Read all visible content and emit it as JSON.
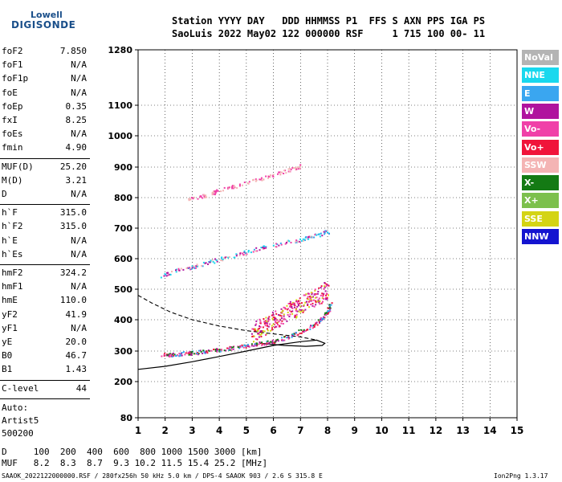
{
  "logo": {
    "line1": "Lowell",
    "line2": "DIGISONDE"
  },
  "header": {
    "row1": "Station YYYY DAY   DDD HHMMSS P1  FFS S AXN PPS IGA PS",
    "row2": "SaoLuis 2022 May02 122 000000 RSF     1 715 100 00- 11"
  },
  "params": {
    "group1": [
      {
        "k": "foF2",
        "v": "7.850"
      },
      {
        "k": "foF1",
        "v": "N/A"
      },
      {
        "k": "foF1p",
        "v": "N/A"
      },
      {
        "k": "foE",
        "v": "N/A"
      },
      {
        "k": "foEp",
        "v": "0.35"
      },
      {
        "k": "fxI",
        "v": "8.25"
      },
      {
        "k": "foEs",
        "v": "N/A"
      },
      {
        "k": "fmin",
        "v": "4.90"
      }
    ],
    "group2": [
      {
        "k": "MUF(D)",
        "v": "25.20"
      },
      {
        "k": "M(D)",
        "v": "3.21"
      },
      {
        "k": "D",
        "v": "N/A"
      }
    ],
    "group3": [
      {
        "k": "h`F",
        "v": "315.0"
      },
      {
        "k": "h`F2",
        "v": "315.0"
      },
      {
        "k": "h`E",
        "v": "N/A"
      },
      {
        "k": "h`Es",
        "v": "N/A"
      }
    ],
    "group4": [
      {
        "k": "hmF2",
        "v": "324.2"
      },
      {
        "k": "hmF1",
        "v": "N/A"
      },
      {
        "k": "hmE",
        "v": "110.0"
      },
      {
        "k": "yF2",
        "v": "41.9"
      },
      {
        "k": "yF1",
        "v": "N/A"
      },
      {
        "k": "yE",
        "v": "20.0"
      },
      {
        "k": "B0",
        "v": "46.7"
      },
      {
        "k": "B1",
        "v": "1.43"
      }
    ],
    "clevel": {
      "k": "C-level",
      "v": "44"
    },
    "auto": [
      "Auto:",
      "Artist5",
      "500200"
    ]
  },
  "legend": [
    {
      "label": "NoVal",
      "color": "#b4b4b4"
    },
    {
      "label": "NNE",
      "color": "#19d8ee"
    },
    {
      "label": "E",
      "color": "#3aa6f0"
    },
    {
      "label": "W",
      "color": "#b0139e"
    },
    {
      "label": "Vo-",
      "color": "#f040a8"
    },
    {
      "label": "Vo+",
      "color": "#f0143a"
    },
    {
      "label": "SSW",
      "color": "#f4b4b4"
    },
    {
      "label": "X-",
      "color": "#147a14"
    },
    {
      "label": "X+",
      "color": "#7cc04c"
    },
    {
      "label": "SSE",
      "color": "#d4d414"
    },
    {
      "label": "NNW",
      "color": "#1414d0"
    }
  ],
  "footer": {
    "row1": "D     100  200  400  600  800 1000 1500 3000 [km]",
    "row2": "MUF   8.2  8.3  8.7  9.3 10.2 11.5 15.4 25.2 [MHz]",
    "row3": "SAAOK_2022122000000.RSF / 280fx256h 50 kHz 5.0 km / DPS-4 SAAOK 903 / 2.6 S 315.8 E",
    "version": "Ion2Png 1.3.17"
  },
  "chart_data": {
    "type": "scatter",
    "x_ticks": [
      "1",
      "2",
      "3",
      "4",
      "5",
      "6",
      "7",
      "8",
      "9",
      "10",
      "11",
      "12",
      "13",
      "14",
      "15"
    ],
    "y_ticks": [
      "80",
      "200",
      "300",
      "400",
      "500",
      "600",
      "700",
      "800",
      "900",
      "1000",
      "1100",
      "1280"
    ],
    "xlim": [
      1,
      15
    ],
    "ylim": [
      80,
      1280
    ],
    "grid": true,
    "legend_position": "right",
    "traces": {
      "o_trace": [
        [
          1.8,
          288
        ],
        [
          2.2,
          290
        ],
        [
          2.6,
          293
        ],
        [
          3.0,
          296
        ],
        [
          3.5,
          300
        ],
        [
          4.0,
          306
        ],
        [
          4.5,
          312
        ],
        [
          5.0,
          318
        ],
        [
          5.5,
          325
        ],
        [
          6.0,
          332
        ],
        [
          6.5,
          345
        ],
        [
          7.0,
          365
        ],
        [
          7.5,
          385
        ],
        [
          7.8,
          405
        ],
        [
          8.0,
          430
        ],
        [
          8.1,
          455
        ]
      ],
      "second_hop": [
        [
          1.8,
          545
        ],
        [
          2.5,
          565
        ],
        [
          3.2,
          580
        ],
        [
          4.0,
          600
        ],
        [
          4.8,
          618
        ],
        [
          5.5,
          635
        ],
        [
          6.2,
          650
        ],
        [
          7.0,
          665
        ],
        [
          7.5,
          675
        ],
        [
          8.0,
          690
        ]
      ],
      "third_hop": [
        [
          2.8,
          795
        ],
        [
          3.5,
          810
        ],
        [
          4.2,
          830
        ],
        [
          5.0,
          850
        ],
        [
          5.8,
          870
        ],
        [
          6.5,
          890
        ],
        [
          7.0,
          905
        ]
      ],
      "spread_f": [
        [
          5.2,
          360
        ],
        [
          5.6,
          380
        ],
        [
          6.0,
          400
        ],
        [
          6.4,
          420
        ],
        [
          6.8,
          440
        ],
        [
          7.2,
          460
        ],
        [
          7.6,
          480
        ],
        [
          8.0,
          500
        ]
      ]
    },
    "profile_solid": [
      [
        1,
        240
      ],
      [
        2.0,
        250
      ],
      [
        3.0,
        265
      ],
      [
        4.0,
        282
      ],
      [
        5.0,
        300
      ],
      [
        6.0,
        318
      ],
      [
        7.0,
        330
      ],
      [
        7.6,
        335
      ],
      [
        7.9,
        325
      ],
      [
        7.8,
        318
      ],
      [
        7.2,
        315
      ],
      [
        6.4,
        318
      ],
      [
        5.5,
        325
      ]
    ],
    "profile_dashed": [
      [
        1,
        480
      ],
      [
        1.5,
        455
      ],
      [
        2.2,
        425
      ],
      [
        3.0,
        400
      ],
      [
        4.0,
        380
      ],
      [
        5.0,
        365
      ],
      [
        6.0,
        355
      ],
      [
        7.0,
        345
      ],
      [
        7.6,
        335
      ]
    ]
  }
}
